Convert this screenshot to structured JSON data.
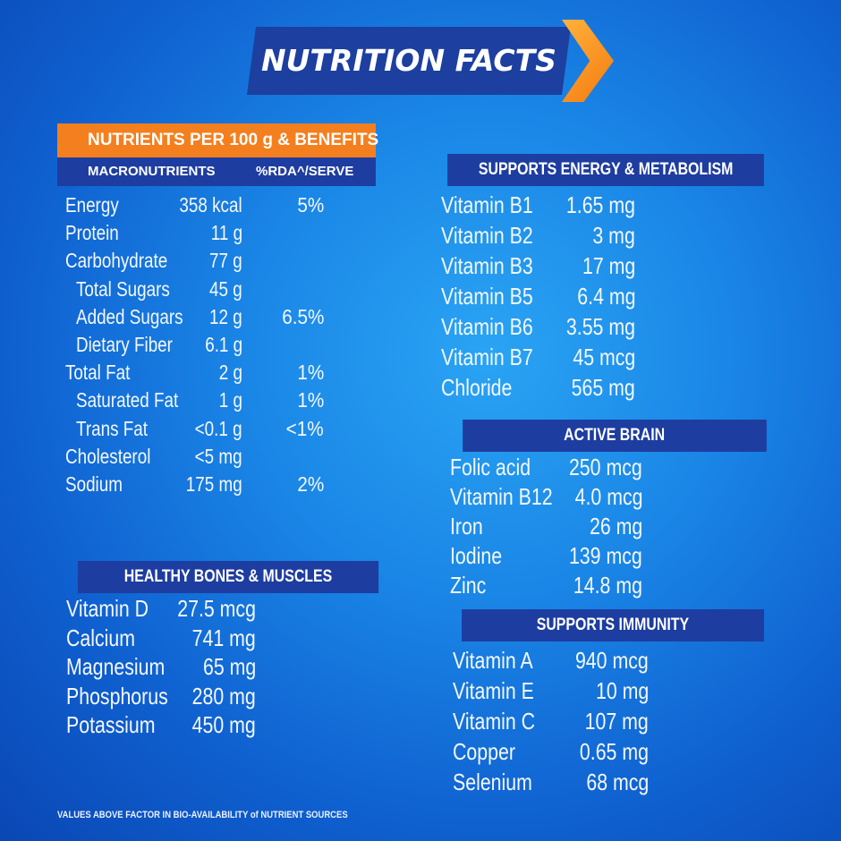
{
  "title": "NUTRITION FACTS",
  "nutrients_header": "NUTRIENTS PER 100 g & BENEFITS",
  "macro_columns": {
    "name": "MACRONUTRIENTS",
    "rda": "%RDA^/SERVE"
  },
  "macronutrients": [
    {
      "name": "Energy",
      "value": "358 kcal",
      "rda": "5%",
      "indent": false
    },
    {
      "name": "Protein",
      "value": "11 g",
      "rda": "",
      "indent": false
    },
    {
      "name": "Carbohydrate",
      "value": "77 g",
      "rda": "",
      "indent": false
    },
    {
      "name": "Total Sugars",
      "value": "45 g",
      "rda": "",
      "indent": true
    },
    {
      "name": "Added Sugars",
      "value": "12 g",
      "rda": "6.5%",
      "indent": true
    },
    {
      "name": "Dietary Fiber",
      "value": "6.1 g",
      "rda": "",
      "indent": true
    },
    {
      "name": "Total Fat",
      "value": "2 g",
      "rda": "1%",
      "indent": false
    },
    {
      "name": "Saturated Fat",
      "value": "1 g",
      "rda": "1%",
      "indent": true
    },
    {
      "name": "Trans Fat",
      "value": "<0.1 g",
      "rda": "<1%",
      "indent": true
    },
    {
      "name": "Cholesterol",
      "value": "<5 mg",
      "rda": "",
      "indent": false
    },
    {
      "name": "Sodium",
      "value": "175 mg",
      "rda": "2%",
      "indent": false
    }
  ],
  "sections": {
    "bones": {
      "title": "HEALTHY BONES & MUSCLES",
      "items": [
        {
          "name": "Vitamin D",
          "value": "27.5 mcg"
        },
        {
          "name": "Calcium",
          "value": "741 mg"
        },
        {
          "name": "Magnesium",
          "value": "65 mg"
        },
        {
          "name": "Phosphorus",
          "value": "280 mg"
        },
        {
          "name": "Potassium",
          "value": "450 mg"
        }
      ]
    },
    "energy": {
      "title": "SUPPORTS ENERGY & METABOLISM",
      "items": [
        {
          "name": "Vitamin B1",
          "value": "1.65 mg"
        },
        {
          "name": "Vitamin B2",
          "value": "3 mg"
        },
        {
          "name": "Vitamin B3",
          "value": "17 mg"
        },
        {
          "name": "Vitamin B5",
          "value": "6.4 mg"
        },
        {
          "name": "Vitamin B6",
          "value": "3.55 mg"
        },
        {
          "name": "Vitamin B7",
          "value": "45 mcg"
        },
        {
          "name": "Chloride",
          "value": "565 mg"
        }
      ]
    },
    "brain": {
      "title": "ACTIVE BRAIN",
      "items": [
        {
          "name": "Folic acid",
          "value": "250 mcg"
        },
        {
          "name": "Vitamin B12",
          "value": "4.0 mcg"
        },
        {
          "name": "Iron",
          "value": "26 mg"
        },
        {
          "name": "Iodine",
          "value": "139 mcg"
        },
        {
          "name": "Zinc",
          "value": "14.8 mg"
        }
      ]
    },
    "immunity": {
      "title": "SUPPORTS IMMUNITY",
      "items": [
        {
          "name": "Vitamin A",
          "value": "940 mcg"
        },
        {
          "name": "Vitamin E",
          "value": "10 mg"
        },
        {
          "name": "Vitamin C",
          "value": "107 mg"
        },
        {
          "name": "Copper",
          "value": "0.65 mg"
        },
        {
          "name": "Selenium",
          "value": "68 mcg"
        }
      ]
    }
  },
  "footnote": "VALUES ABOVE FACTOR IN BIO-AVAILABILITY of NUTRIENT SOURCES",
  "colors": {
    "background": "#1a86e6",
    "bar": "#1e3da0",
    "accent": "#f47f1e"
  }
}
